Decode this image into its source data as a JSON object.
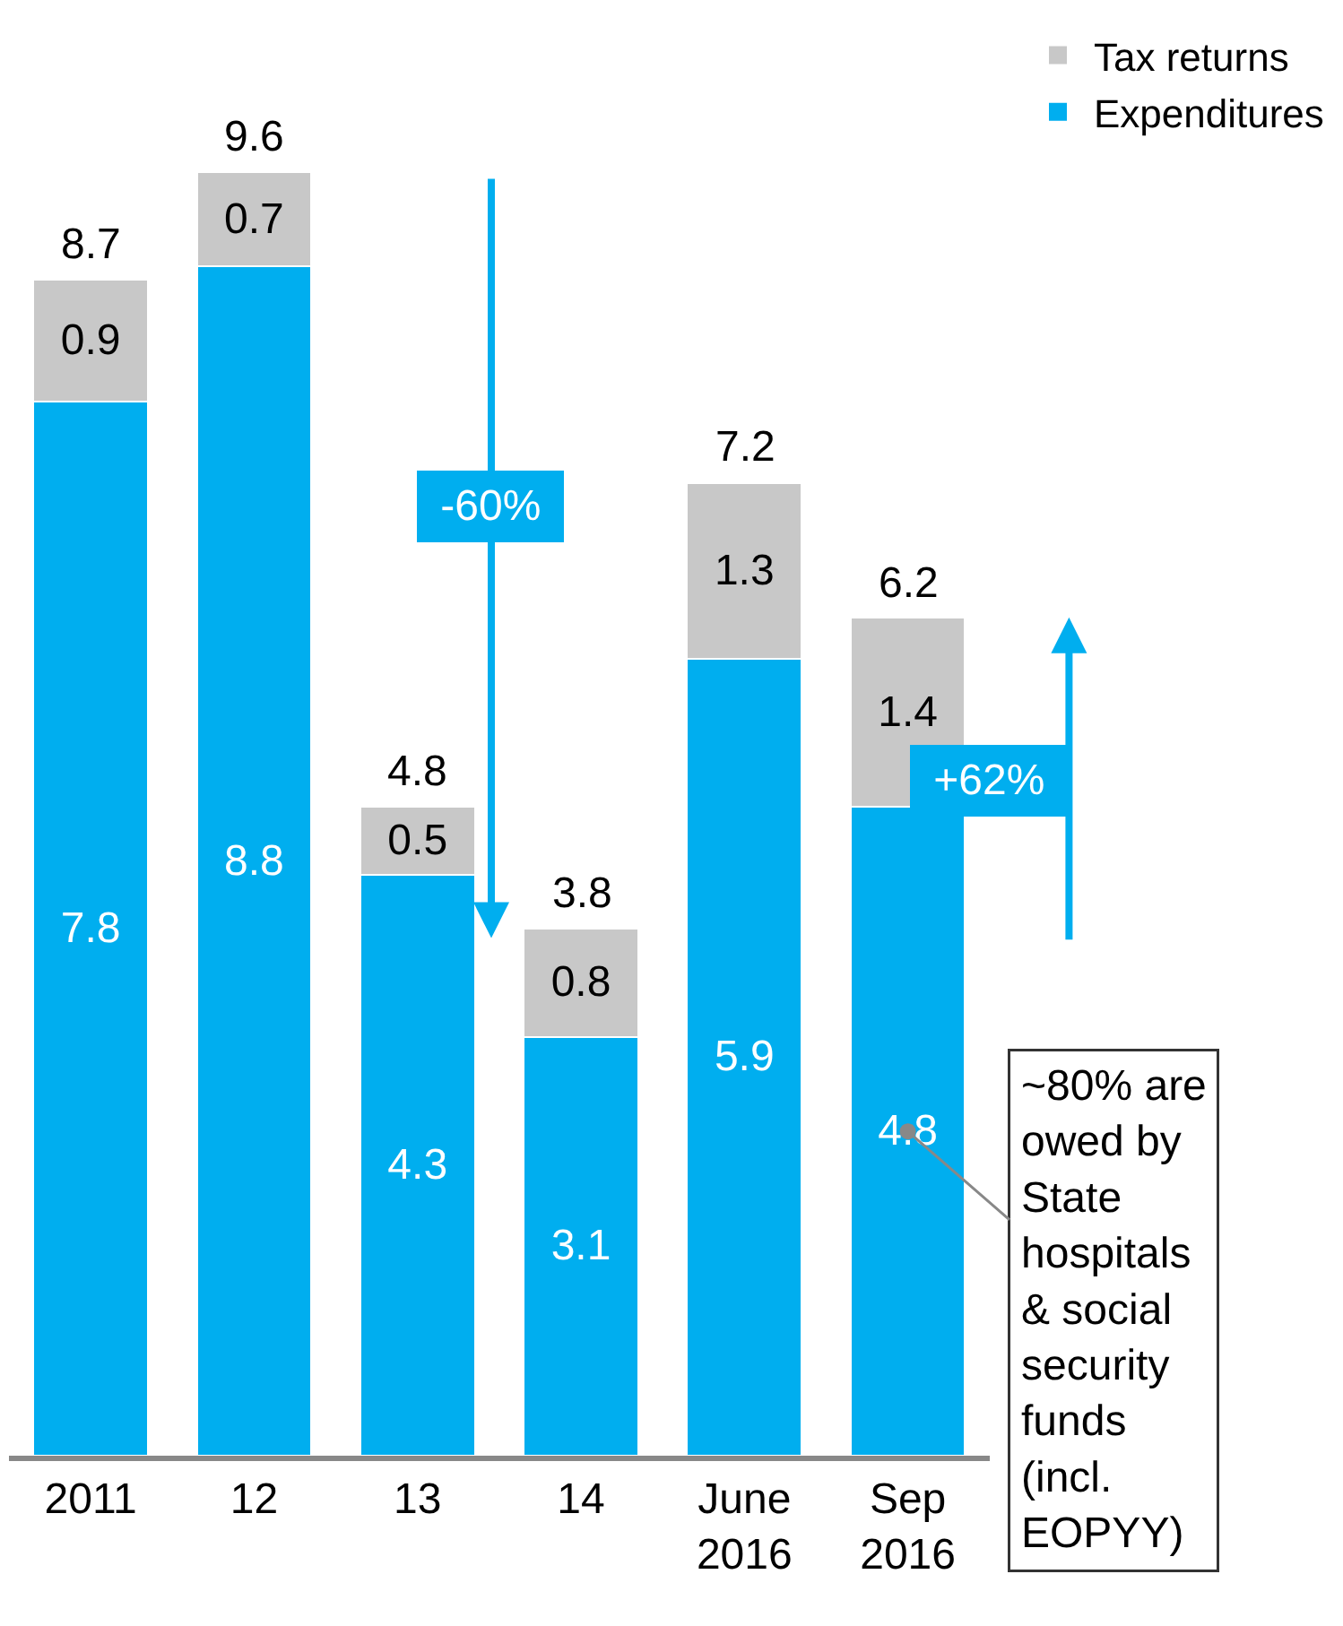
{
  "chart_data": {
    "type": "bar",
    "stacked": true,
    "data_labels": true,
    "legend": "top right",
    "categories": [
      "2011",
      "12",
      "13",
      "14",
      "June 2016",
      "Sep 2016"
    ],
    "series": [
      {
        "name": "Expenditures",
        "color": "#00aeef",
        "values": [
          7.8,
          8.8,
          4.3,
          3.1,
          5.9,
          4.8
        ]
      },
      {
        "name": "Tax returns",
        "color": "#c8c8c8",
        "values": [
          0.9,
          0.7,
          0.5,
          0.8,
          1.3,
          1.4
        ]
      }
    ],
    "totals": [
      "8.7",
      "9.6",
      "4.8",
      "3.8",
      "7.2",
      "6.2"
    ],
    "annotations": [
      "-60%",
      "+62%",
      "~80% are owed by State hospitals & social security funds (incl. EOPYY)"
    ]
  }
}
